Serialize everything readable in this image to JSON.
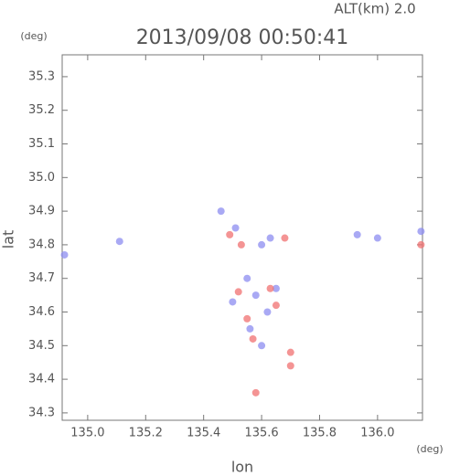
{
  "chart_data": {
    "type": "scatter",
    "title": "2013/09/08 00:50:41",
    "subtitle": "ALT(km) 2.0",
    "y_unit": "(deg)",
    "x_unit": "(deg)",
    "x_label": "lon",
    "y_label": "lat",
    "xlim": [
      134.912,
      136.155
    ],
    "ylim": [
      34.278,
      35.365
    ],
    "xticks": [
      {
        "value": 135,
        "label": "135.0"
      },
      {
        "value": 135.2,
        "label": "135.2"
      },
      {
        "value": 135.4,
        "label": "135.4"
      },
      {
        "value": 135.6,
        "label": "135.6"
      },
      {
        "value": 135.8,
        "label": "135.8"
      },
      {
        "value": 136,
        "label": "136.0"
      }
    ],
    "yticks": [
      34.3,
      34.4,
      34.5,
      34.6,
      34.7,
      34.8,
      34.9,
      {
        "value": 35,
        "label": "35.0"
      },
      35.1,
      35.2,
      35.3
    ],
    "series": [
      {
        "color": "#8c8cf0",
        "x": [
          135.46,
          135.51,
          135.6,
          135.63,
          135.55,
          135.58,
          135.62,
          135.56,
          135.6,
          135.93,
          136.0,
          136.15,
          135.11,
          134.92,
          135.5,
          135.65
        ],
        "values": [
          34.9,
          34.85,
          34.8,
          34.82,
          34.7,
          34.65,
          34.6,
          34.55,
          34.5,
          34.83,
          34.82,
          34.84,
          34.81,
          34.77,
          34.63,
          34.67
        ]
      },
      {
        "color": "#f07070",
        "x": [
          135.49,
          135.53,
          135.68,
          135.55,
          135.63,
          135.57,
          135.7,
          135.7,
          135.58,
          136.15,
          135.65,
          135.52
        ],
        "values": [
          34.83,
          34.8,
          34.82,
          34.58,
          34.67,
          34.52,
          34.48,
          34.44,
          34.36,
          34.8,
          34.62,
          34.66
        ]
      }
    ]
  }
}
